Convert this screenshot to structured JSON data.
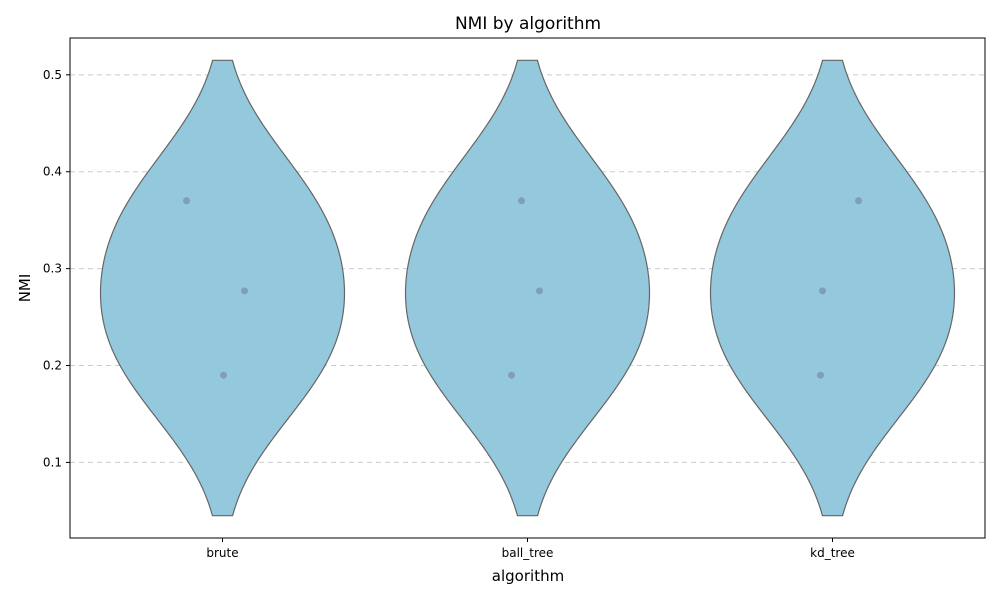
{
  "chart_data": {
    "type": "violin",
    "title": "NMI by algorithm",
    "xlabel": "algorithm",
    "ylabel": "NMI",
    "categories": [
      "brute",
      "ball_tree",
      "kd_tree"
    ],
    "ylim": [
      0.022,
      0.538
    ],
    "yticks": [
      0.1,
      0.2,
      0.3,
      0.4,
      0.5
    ],
    "y_grid": true,
    "grid_style": "dashed",
    "violin_range": [
      0.045,
      0.515
    ],
    "points": [
      [
        0.37,
        0.277,
        0.19
      ],
      [
        0.37,
        0.277,
        0.19
      ],
      [
        0.37,
        0.277,
        0.19
      ]
    ],
    "colors": {
      "violin_fill": "#93c8dd",
      "violin_edge": "#666666",
      "points": "#7f9fb3",
      "grid": "#cccccc"
    }
  }
}
